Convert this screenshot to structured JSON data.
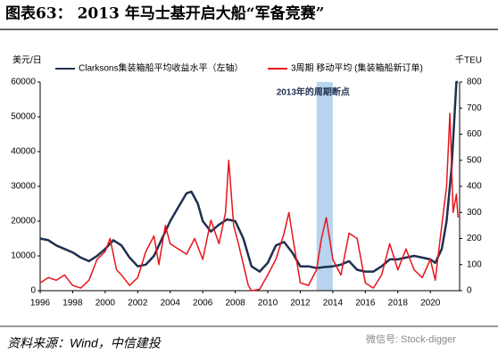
{
  "chart_data": {
    "type": "line",
    "title": "图表63： 2013 年马士基开启大船“军备竞赛”",
    "ylabel": "美元/日",
    "y2label": "千TEU",
    "annotation": "2013年的周期断点",
    "shade": [
      2013,
      2014
    ],
    "source": "资料来源：Wind，中信建投",
    "watermark": "微信号: Stock-digger",
    "xlim": [
      1996,
      2021.8
    ],
    "xticks": [
      1996,
      1998,
      2000,
      2002,
      2004,
      2006,
      2008,
      2010,
      2012,
      2014,
      2016,
      2018,
      2020
    ],
    "ylim": [
      0,
      60000
    ],
    "yticks": [
      0,
      10000,
      20000,
      30000,
      40000,
      50000,
      60000
    ],
    "y2lim": [
      0,
      800
    ],
    "y2ticks": [
      0,
      100,
      200,
      300,
      400,
      500,
      600,
      700,
      800
    ],
    "series": [
      {
        "name": "Clarksons集装箱船平均收益水平（左轴）",
        "color": "#1f3050",
        "x": [
          1996,
          1996.5,
          1997,
          1997.5,
          1998,
          1998.5,
          1999,
          1999.5,
          2000,
          2000.5,
          2001,
          2001.5,
          2002,
          2002.5,
          2003,
          2003.5,
          2004,
          2004.5,
          2005,
          2005.3,
          2005.7,
          2006,
          2006.5,
          2007,
          2007.5,
          2008,
          2008.5,
          2009,
          2009.5,
          2010,
          2010.5,
          2011,
          2011.5,
          2012,
          2012.5,
          2013,
          2013.5,
          2014,
          2014.5,
          2015,
          2015.5,
          2016,
          2016.5,
          2017,
          2017.5,
          2018,
          2018.5,
          2019,
          2019.5,
          2020,
          2020.3,
          2020.7,
          2021,
          2021.3,
          2021.6,
          2021.7
        ],
        "values": [
          15000,
          14500,
          13000,
          12000,
          11000,
          9500,
          8500,
          10000,
          12000,
          14500,
          13000,
          9500,
          7000,
          7500,
          10000,
          15000,
          20000,
          24000,
          28000,
          28500,
          25000,
          20000,
          17000,
          19000,
          20500,
          20000,
          15000,
          7000,
          5500,
          8000,
          13000,
          14000,
          11000,
          7000,
          7000,
          6500,
          6800,
          7000,
          7500,
          8500,
          6000,
          5500,
          5500,
          7000,
          9000,
          9000,
          9500,
          10000,
          9500,
          9000,
          8000,
          12000,
          20000,
          35000,
          60000,
          60000
        ]
      },
      {
        "name": "3周期 移动平均 (集装箱船新订单)",
        "color": "#e8141c",
        "axis": "y2",
        "x": [
          1996,
          1996.5,
          1997,
          1997.5,
          1998,
          1998.5,
          1999,
          1999.5,
          2000,
          2000.3,
          2000.7,
          2001,
          2001.5,
          2002,
          2002.5,
          2003,
          2003.3,
          2003.7,
          2004,
          2004.5,
          2005,
          2005.5,
          2006,
          2006.5,
          2007,
          2007.4,
          2007.6,
          2007.9,
          2008.2,
          2008.5,
          2008.8,
          2009,
          2009.5,
          2010,
          2010.5,
          2011,
          2011.3,
          2011.6,
          2012,
          2012.5,
          2013,
          2013.3,
          2013.6,
          2014,
          2014.5,
          2015,
          2015.5,
          2016,
          2016.5,
          2017,
          2017.5,
          2018,
          2018.5,
          2019,
          2019.5,
          2020,
          2020.3,
          2020.7,
          2021,
          2021.2,
          2021.4,
          2021.6,
          2021.7
        ],
        "values": [
          30,
          50,
          40,
          60,
          20,
          10,
          40,
          120,
          150,
          200,
          80,
          60,
          20,
          50,
          150,
          210,
          100,
          250,
          180,
          160,
          140,
          200,
          120,
          270,
          180,
          300,
          500,
          250,
          180,
          100,
          20,
          0,
          5,
          60,
          120,
          220,
          300,
          180,
          30,
          20,
          80,
          200,
          280,
          120,
          60,
          220,
          200,
          30,
          10,
          60,
          180,
          80,
          160,
          80,
          50,
          120,
          40,
          250,
          400,
          680,
          300,
          370,
          280
        ]
      }
    ]
  }
}
